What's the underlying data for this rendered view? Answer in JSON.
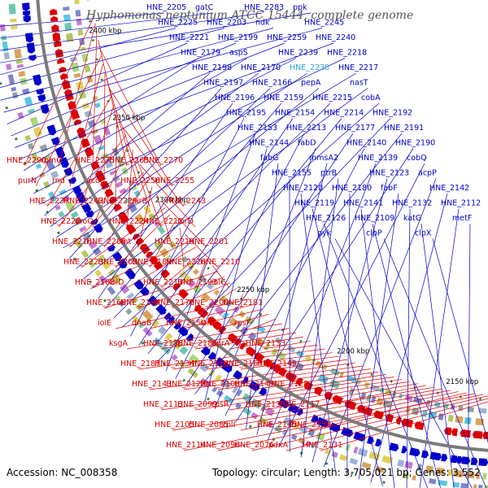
{
  "map": {
    "title": "Hyphomonas neptunium ATCC 15444, complete genome",
    "accession": "Accession: NC_008358",
    "summary": "Topology: circular; Length: 3,705,021 bp; Genes: 3,552"
  },
  "colors": {
    "forward": "#0000cc",
    "reverse": "#dd0000",
    "highlight": "#2fa4d8",
    "backbone": "#7a7a7a",
    "ruler_tick": "#2d7f2d"
  },
  "ruler": [
    "2400 kbp",
    "2350 kbp",
    "2300 kbp",
    "2250 kbp",
    "2200 kbp",
    "2150 kbp"
  ],
  "forward_labels": [
    "HNE_2205",
    "gatC",
    "HNE_2283",
    "ppk",
    "HNE_2225",
    "HNE_2203",
    "ndk",
    "HNE_2245",
    "HNE_2221",
    "HNE_2199",
    "HNE_2259",
    "HNE_2240",
    "HNE_2179",
    "aspS",
    "HNE_2239",
    "HNE_2218",
    "HNE_2198",
    "HNE_2170",
    "HNE_2238",
    "HNE_2217",
    "HNE_2197",
    "HNE_2166",
    "pepA",
    "nasT",
    "HNE_2196",
    "HNE_2159",
    "HNE_2215",
    "cobA",
    "HNE_2195",
    "HNE_2154",
    "HNE_2214",
    "HNE_2192",
    "HNE_2153",
    "HNE_2213",
    "HNE_2177",
    "HNE_2191",
    "HNE_2144",
    "fabD",
    "HNE_2140",
    "HNE_2190",
    "fabG",
    "mmsA2",
    "HNE_2139",
    "cobQ",
    "HNE_2155",
    "ptrB",
    "HNE_2123",
    "acpP",
    "HNE_2120",
    "HNE_2180",
    "fabF",
    "HNE_2142",
    "HNE_2119",
    "HNE_2141",
    "HNE_2132",
    "HNE_2112",
    "HNE_2126",
    "HNE_2109",
    "katG",
    "metF",
    "pyk",
    "clpP",
    "clpX"
  ],
  "reverse_labels": [
    "HNE_2290",
    "rpmG",
    "HNE_2275",
    "HNE_2265",
    "HNE_2270",
    "purN",
    "rnd",
    "accC",
    "HNE_2256",
    "HNE_2255",
    "HNE_2237",
    "HNE_2242",
    "HNE_2229",
    "nirB",
    "HNE_2243",
    "HNE_2220",
    "aroQ",
    "HNE_2224",
    "HNE_2212",
    "nirD",
    "HNE_2216",
    "HNE_2206",
    "fnt",
    "HNE_2219",
    "HNE_2201",
    "HNE_2223",
    "HNE_2202",
    "HNE_2189",
    "HNE_2226",
    "HNE_2210",
    "HNE_2188",
    "iolD",
    "HNE_2211",
    "HNE_2193",
    "iolC",
    "HNE_2168",
    "HNE_2194",
    "HNE_2178",
    "HNE_2200",
    "HNE_2181",
    "iolE",
    "dnaB",
    "HNE_2150",
    "iolB",
    "rpsF",
    "ksgA",
    "HNE_2138",
    "HNE_2186",
    "dprA",
    "HNE_2133",
    "HNE_2187",
    "HNE_2134",
    "HNE_2118",
    "HNE_2167",
    "HNE_2149",
    "HNE_2143",
    "HNE_2122",
    "HNE_2108",
    "HNE_2147",
    "HNE_2128",
    "HNE_2113",
    "HNE_2099",
    "rpsR",
    "HNE_2135",
    "HNE_2117",
    "HNE_2105",
    "HNE_2085",
    "rplI",
    "HNE_2145",
    "HNE_2129",
    "HNE_2114",
    "HNE_2096",
    "HNE_2076",
    "pdxA",
    "HNE_2131"
  ]
}
